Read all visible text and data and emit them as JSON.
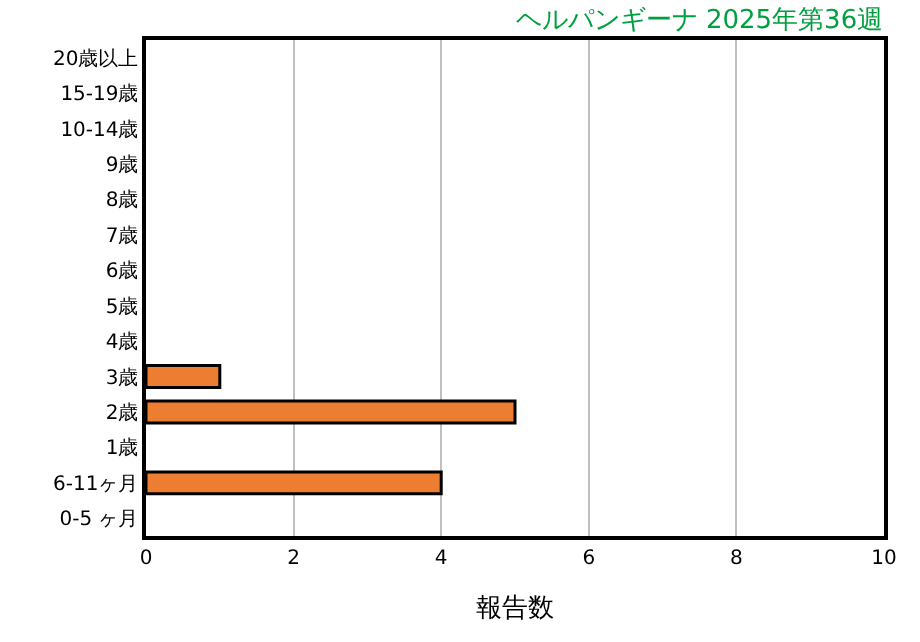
{
  "chart_data": {
    "type": "bar",
    "orientation": "horizontal",
    "title": "ヘルパンギーナ 2025年第36週",
    "categories": [
      "20歳以上",
      "15-19歳",
      "10-14歳",
      "9歳",
      "8歳",
      "7歳",
      "6歳",
      "5歳",
      "4歳",
      "3歳",
      "2歳",
      "1歳",
      "6-11ヶ月",
      "0-5 ヶ月"
    ],
    "values": [
      0,
      0,
      0,
      0,
      0,
      0,
      0,
      0,
      0,
      1,
      5,
      0,
      4,
      0
    ],
    "color": "#ed7d31",
    "xlabel": "報告数",
    "xlim": [
      0,
      10
    ],
    "xticks": [
      0,
      2,
      4,
      6,
      8,
      10
    ],
    "grid": "x",
    "legend": false
  }
}
